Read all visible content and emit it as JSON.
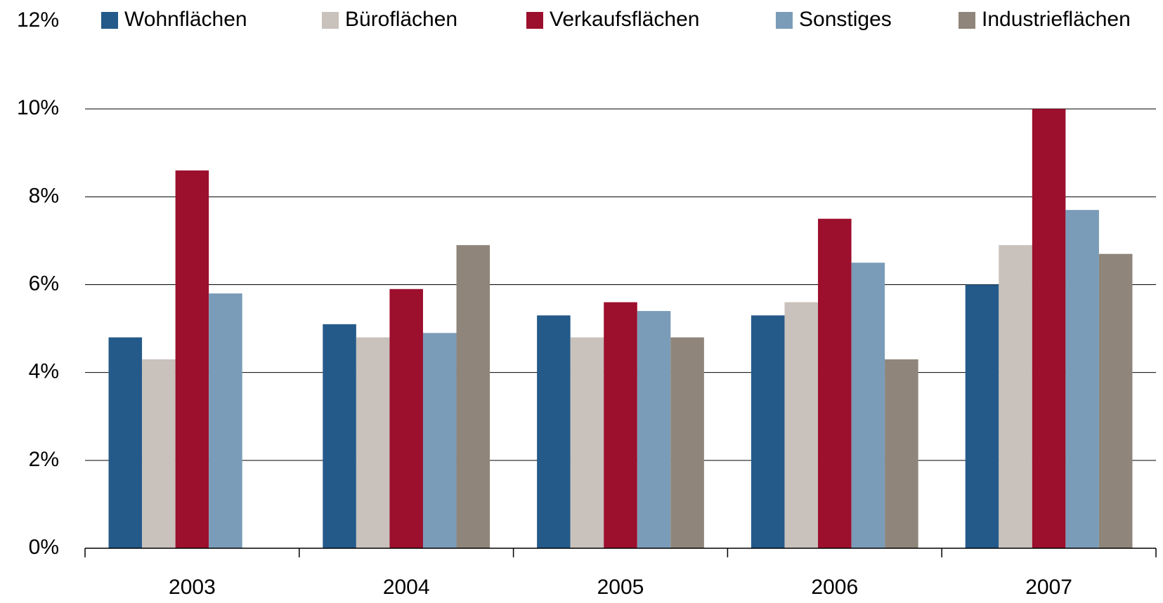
{
  "chart_data": {
    "type": "bar",
    "categories": [
      "2003",
      "2004",
      "2005",
      "2006",
      "2007"
    ],
    "series": [
      {
        "name": "Wohnflächen",
        "color": "#245a89",
        "values": [
          4.8,
          5.1,
          5.3,
          5.3,
          6.0
        ]
      },
      {
        "name": "Büroflächen",
        "color": "#c9c1bb",
        "values": [
          4.3,
          4.8,
          4.8,
          5.6,
          6.9
        ]
      },
      {
        "name": "Verkaufsflächen",
        "color": "#9c0f2d",
        "values": [
          8.6,
          5.9,
          5.6,
          7.5,
          10.0
        ]
      },
      {
        "name": "Sonstiges",
        "color": "#7a9cb8",
        "values": [
          5.8,
          4.9,
          5.4,
          6.5,
          7.7
        ]
      },
      {
        "name": "Industrieflächen",
        "color": "#8f857a",
        "values": [
          null,
          6.9,
          4.8,
          4.3,
          6.7
        ]
      }
    ],
    "ylim": [
      0,
      12
    ],
    "yticks": [
      {
        "value": 0,
        "label": "0%"
      },
      {
        "value": 2,
        "label": "2%"
      },
      {
        "value": 4,
        "label": "4%"
      },
      {
        "value": 6,
        "label": "6%"
      },
      {
        "value": 8,
        "label": "8%"
      },
      {
        "value": 10,
        "label": "10%"
      },
      {
        "value": 12,
        "label": "12%"
      }
    ],
    "grid": true,
    "legend": "top"
  }
}
